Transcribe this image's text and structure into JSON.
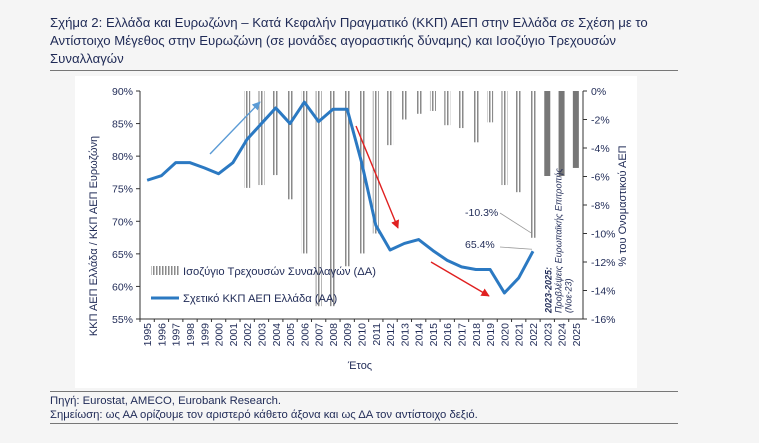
{
  "title": "Σχήμα 2: Ελλάδα και Ευρωζώνη – Κατά Κεφαλήν Πραγματικό (ΚΚΠ) ΑΕΠ στην Ελλάδα σε Σχέση με το Αντίστοιχο Μέγεθος στην Ευρωζώνη (σε μονάδες αγοραστικής δύναμης) και Ισοζύγιο Τρεχουσών Συναλλαγών",
  "source": "Πηγή: Eurostat, AMECO, Eurobank Research.",
  "note": "Σημείωση: ως ΑΑ ορίζουμε τον αριστερό κάθετο άξονα και ως ΔΑ τον αντίστοιχο δεξιό.",
  "colors": {
    "line": "#2b79c2",
    "bar": "#8a8a8a",
    "arrow_red": "#e02020",
    "arrow_blue": "#5b9bd5",
    "text": "#1f2a56"
  },
  "chart_data": {
    "type": "bar+line",
    "categories": [
      "1995",
      "1996",
      "1997",
      "1998",
      "1999",
      "2000",
      "2001",
      "2002",
      "2003",
      "2004",
      "2005",
      "2006",
      "2007",
      "2008",
      "2009",
      "2010",
      "2011",
      "2012",
      "2013",
      "2014",
      "2015",
      "2016",
      "2017",
      "2018",
      "2019",
      "2020",
      "2021",
      "2022",
      "2023",
      "2024",
      "2025"
    ],
    "xlabel": "Έτος",
    "ylabel_left": "ΚΚΠ ΑΕΠ Ελλάδα / ΚΚΠ ΑΕΠ Ευρωζώνη",
    "ylabel_right": "% του Ονομαστικού ΑΕΠ",
    "ylim_left": [
      55,
      90
    ],
    "ylim_right": [
      -16,
      0
    ],
    "yticks_left": [
      "55%",
      "60%",
      "65%",
      "70%",
      "75%",
      "80%",
      "85%",
      "90%"
    ],
    "yticks_right": [
      "-16%",
      "-14%",
      "-12%",
      "-10%",
      "-8%",
      "-6%",
      "-4%",
      "-2%",
      "0%"
    ],
    "series": [
      {
        "name": "Ισοζύγιο Τρεχουσών Συναλλαγών (ΔΑ)",
        "axis": "right",
        "kind": "bar",
        "values": [
          null,
          null,
          null,
          null,
          null,
          null,
          null,
          -6.8,
          -6.6,
          -5.9,
          -7.6,
          -11.4,
          -15.1,
          -15.1,
          -12.3,
          -11.4,
          -10.0,
          -3.8,
          -2.0,
          -1.6,
          -1.4,
          -2.4,
          -2.6,
          -3.6,
          -2.2,
          -6.6,
          -7.1,
          -10.3,
          -6.8,
          -6.0,
          -5.4
        ],
        "forecast_from": "2023"
      },
      {
        "name": "Σχετικό ΚΚΠ ΑΕΠ Ελλάδα (ΑΑ)",
        "axis": "left",
        "kind": "line",
        "values": [
          76.3,
          77.0,
          79.0,
          79.0,
          78.2,
          77.3,
          79.0,
          82.6,
          85.0,
          87.4,
          85.0,
          88.3,
          85.3,
          87.2,
          87.2,
          79.1,
          69.4,
          65.6,
          66.6,
          67.2,
          65.5,
          64.0,
          63.0,
          62.6,
          62.6,
          59.0,
          61.3,
          65.4,
          null,
          null,
          null
        ]
      }
    ],
    "annotations": [
      {
        "text": "-10.3%",
        "target": "2022 bar"
      },
      {
        "text": "65.4%",
        "target": "2022 line"
      },
      {
        "text": "2023-2025: Προβλέψεις Ευρωπαϊκής Επιτροπής (Νοε-23)"
      }
    ]
  }
}
